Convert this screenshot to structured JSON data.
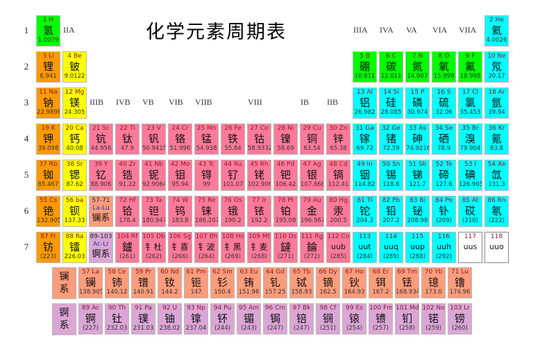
{
  "title": "化学元素周期表",
  "group_labels": {
    "top": [
      "IIA",
      "IIIA",
      "IVA",
      "VA",
      "VIA",
      "VIIA"
    ],
    "middle": [
      "IIIB",
      "IVB",
      "VB",
      "VIB",
      "VIIB",
      "VIII",
      "IB",
      "IIB"
    ]
  },
  "periods": [
    "1",
    "2",
    "3",
    "4",
    "5",
    "6",
    "7"
  ],
  "rows": [
    [
      {
        "number": "1",
        "symbol": "H",
        "name": "氢",
        "mass": "1.0079",
        "color": "#00ff00"
      },
      null,
      null,
      null,
      null,
      null,
      null,
      null,
      null,
      null,
      null,
      null,
      null,
      null,
      null,
      null,
      null,
      {
        "number": "2",
        "symbol": "He",
        "name": "氦",
        "mass": "4.0026",
        "color": "#00ffff"
      }
    ],
    [
      {
        "number": "3",
        "symbol": "Li",
        "name": "锂",
        "mass": "6.941",
        "color": "#ff9900"
      },
      {
        "number": "4",
        "symbol": "Be",
        "name": "铍",
        "mass": "9.0122",
        "color": "#ffff00"
      },
      null,
      null,
      null,
      null,
      null,
      null,
      null,
      null,
      null,
      null,
      {
        "number": "5",
        "symbol": "B",
        "name": "硼",
        "mass": "10.811",
        "color": "#00ff00"
      },
      {
        "number": "6",
        "symbol": "C",
        "name": "碳",
        "mass": "12.011",
        "color": "#00ff00"
      },
      {
        "number": "7",
        "symbol": "N",
        "name": "氮",
        "mass": "14.007",
        "color": "#00ff00"
      },
      {
        "number": "8",
        "symbol": "O",
        "name": "氧",
        "mass": "15.999",
        "color": "#00ff00"
      },
      {
        "number": "9",
        "symbol": "F",
        "name": "氟",
        "mass": "18.998",
        "color": "#00ff00"
      },
      {
        "number": "10",
        "symbol": "Ne",
        "name": "氖",
        "mass": "20.17",
        "color": "#00ffff"
      }
    ],
    [
      {
        "number": "11",
        "symbol": "Na",
        "name": "钠",
        "mass": "22.9898",
        "color": "#ff9900"
      },
      {
        "number": "12",
        "symbol": "Mg",
        "name": "镁",
        "mass": "24.305",
        "color": "#ffff00"
      },
      null,
      null,
      null,
      null,
      null,
      null,
      null,
      null,
      null,
      null,
      {
        "number": "13",
        "symbol": "Al",
        "name": "铝",
        "mass": "26.982",
        "color": "#00ffff"
      },
      {
        "number": "14",
        "symbol": "Si",
        "name": "硅",
        "mass": "28.085",
        "color": "#00ffff"
      },
      {
        "number": "15",
        "symbol": "P",
        "name": "磷",
        "mass": "30.974",
        "color": "#00ffff"
      },
      {
        "number": "16",
        "symbol": "S",
        "name": "硫",
        "mass": "32.06",
        "color": "#00ffff"
      },
      {
        "number": "17",
        "symbol": "Cl",
        "name": "氯",
        "mass": "35.453",
        "color": "#00ffff"
      },
      {
        "number": "18",
        "symbol": "Ar",
        "name": "氩",
        "mass": "39.94",
        "color": "#00ffff"
      }
    ],
    [
      {
        "number": "19",
        "symbol": "K",
        "name": "钾",
        "mass": "39.098",
        "color": "#ff9900"
      },
      {
        "number": "20",
        "symbol": "Ca",
        "name": "钙",
        "mass": "40.08",
        "color": "#ffff00"
      },
      {
        "number": "21",
        "symbol": "Sc",
        "name": "钪",
        "mass": "44.956",
        "color": "#ff7a99"
      },
      {
        "number": "22",
        "symbol": "Ti",
        "name": "钛",
        "mass": "47.9",
        "color": "#ff7a99"
      },
      {
        "number": "23",
        "symbol": "V",
        "name": "钒",
        "mass": "50.9415",
        "color": "#ff7a99"
      },
      {
        "number": "24",
        "symbol": "Cr",
        "name": "铬",
        "mass": "51.996",
        "color": "#ff7a99"
      },
      {
        "number": "25",
        "symbol": "Mn",
        "name": "锰",
        "mass": "54.938",
        "color": "#ff7a99"
      },
      {
        "number": "26",
        "symbol": "Fe",
        "name": "铁",
        "mass": "55.84",
        "color": "#ff7a99"
      },
      {
        "number": "27",
        "symbol": "Co",
        "name": "钴",
        "mass": "58.9332",
        "color": "#ff7a99"
      },
      {
        "number": "28",
        "symbol": "Ni",
        "name": "镍",
        "mass": "58.69",
        "color": "#ff7a99"
      },
      {
        "number": "29",
        "symbol": "Cu",
        "name": "铜",
        "mass": "63.54",
        "color": "#ff7a99"
      },
      {
        "number": "30",
        "symbol": "Zn",
        "name": "锌",
        "mass": "65.38",
        "color": "#ff7a99"
      },
      {
        "number": "31",
        "symbol": "Ga",
        "name": "镓",
        "mass": "69.72",
        "color": "#00ffff"
      },
      {
        "number": "32",
        "symbol": "Ge",
        "name": "锗",
        "mass": "72.59",
        "color": "#00ffff"
      },
      {
        "number": "33",
        "symbol": "As",
        "name": "砷",
        "mass": "74.9216",
        "color": "#00ffff"
      },
      {
        "number": "34",
        "symbol": "Se",
        "name": "硒",
        "mass": "78.9",
        "color": "#00ffff"
      },
      {
        "number": "35",
        "symbol": "Br",
        "name": "溴",
        "mass": "79.904",
        "color": "#00ffff"
      },
      {
        "number": "36",
        "symbol": "Kr",
        "name": "氪",
        "mass": "83.8",
        "color": "#00ffff"
      }
    ],
    [
      {
        "number": "37",
        "symbol": "Rb",
        "name": "铷",
        "mass": "85.467",
        "color": "#ff9900"
      },
      {
        "number": "38",
        "symbol": "Sr",
        "name": "锶",
        "mass": "87.62",
        "color": "#ffff00"
      },
      {
        "number": "39",
        "symbol": "Y",
        "name": "钇",
        "mass": "88.906",
        "color": "#ff7a99"
      },
      {
        "number": "40",
        "symbol": "Zr",
        "name": "锆",
        "mass": "91.22",
        "color": "#ff7a99"
      },
      {
        "number": "41",
        "symbol": "Nb",
        "name": "铌",
        "mass": "92.9064",
        "color": "#ff7a99"
      },
      {
        "number": "42",
        "symbol": "Mo",
        "name": "钼",
        "mass": "95.94",
        "color": "#ff7a99"
      },
      {
        "number": "43",
        "symbol": "Tc",
        "name": "锝",
        "mass": "99",
        "color": "#ff7a99"
      },
      {
        "number": "44",
        "symbol": "Ru",
        "name": "钌",
        "mass": "101.07",
        "color": "#ff7a99"
      },
      {
        "number": "45",
        "symbol": "Rh",
        "name": "铑",
        "mass": "102.906",
        "color": "#ff7a99"
      },
      {
        "number": "46",
        "symbol": "Pd",
        "name": "钯",
        "mass": "106.42",
        "color": "#ff7a99"
      },
      {
        "number": "47",
        "symbol": "Ag",
        "name": "银",
        "mass": "107.868",
        "color": "#ff7a99"
      },
      {
        "number": "48",
        "symbol": "Cd",
        "name": "镉",
        "mass": "112.41",
        "color": "#ff7a99"
      },
      {
        "number": "49",
        "symbol": "In",
        "name": "铟",
        "mass": "114.82",
        "color": "#00ffff"
      },
      {
        "number": "50",
        "symbol": "Sn",
        "name": "锡",
        "mass": "118.6",
        "color": "#00ffff"
      },
      {
        "number": "51",
        "symbol": "Sb",
        "name": "锑",
        "mass": "121.7",
        "color": "#00ffff"
      },
      {
        "number": "52",
        "symbol": "Te",
        "name": "碲",
        "mass": "127.6",
        "color": "#00ffff"
      },
      {
        "number": "53",
        "symbol": "I",
        "name": "碘",
        "mass": "126.905",
        "color": "#00ffff"
      },
      {
        "number": "54",
        "symbol": "Xe",
        "name": "氙",
        "mass": "131.3",
        "color": "#00ffff"
      }
    ],
    [
      {
        "number": "55",
        "symbol": "Cs",
        "name": "铯",
        "mass": "132.905",
        "color": "#ff9900"
      },
      {
        "number": "56",
        "symbol": "ba",
        "name": "钡",
        "mass": "137.33",
        "color": "#ffff00"
      },
      {
        "number": "57-71",
        "symbol": "La-Lu",
        "name": "镧系",
        "color": "#ff9c7c"
      },
      {
        "number": "72",
        "symbol": "Hf",
        "name": "铪",
        "mass": "178.4",
        "color": "#ff7a99"
      },
      {
        "number": "73",
        "symbol": "Ta",
        "name": "钽",
        "mass": "180.947",
        "color": "#ff7a99"
      },
      {
        "number": "74",
        "symbol": "W",
        "name": "钨",
        "mass": "183.8",
        "color": "#ff7a99"
      },
      {
        "number": "75",
        "symbol": "Re",
        "name": "铼",
        "mass": "186.207",
        "color": "#ff7a99"
      },
      {
        "number": "76",
        "symbol": "Os",
        "name": "锇",
        "mass": "190.2",
        "color": "#ff7a99"
      },
      {
        "number": "77",
        "symbol": "Ir",
        "name": "铱",
        "mass": "192.2",
        "color": "#ff7a99"
      },
      {
        "number": "78",
        "symbol": "Pt",
        "name": "铂",
        "mass": "195.08",
        "color": "#ff7a99"
      },
      {
        "number": "79",
        "symbol": "Au",
        "name": "金",
        "mass": "196.967",
        "color": "#ff7a99"
      },
      {
        "number": "80",
        "symbol": "Hg",
        "name": "汞",
        "mass": "200.5",
        "color": "#ff7a99"
      },
      {
        "number": "81",
        "symbol": "Tl",
        "name": "铊",
        "mass": "204.3",
        "color": "#00ffff"
      },
      {
        "number": "82",
        "symbol": "Pb",
        "name": "铅",
        "mass": "207.2",
        "color": "#00ffff"
      },
      {
        "number": "83",
        "symbol": "Bi",
        "name": "铋",
        "mass": "208.98",
        "color": "#00ffff"
      },
      {
        "number": "84",
        "symbol": "Po",
        "name": "钋",
        "mass": "(209)",
        "color": "#00ffff"
      },
      {
        "number": "85",
        "symbol": "At",
        "name": "砹",
        "mass": "(210)",
        "color": "#00ffff"
      },
      {
        "number": "86",
        "symbol": "Rn",
        "name": "氡",
        "mass": "(222)",
        "color": "#00ffff"
      }
    ],
    [
      {
        "number": "87",
        "symbol": "Fr",
        "name": "钫",
        "mass": "(223)",
        "color": "#ff9900"
      },
      {
        "number": "88",
        "symbol": "Ra",
        "name": "镭",
        "mass": "226.03",
        "color": "#ffff00"
      },
      {
        "number": "89-103",
        "symbol": "Ac-Lr",
        "name": "锕系",
        "color": "#dba6d6"
      },
      {
        "number": "104",
        "symbol": "Rf",
        "name": "鑪",
        "mass": "(261)",
        "color": "#ff7a99"
      },
      {
        "number": "105",
        "symbol": "Db",
        "name": "钅杜",
        "mass": "(262)",
        "color": "#ff7a99"
      },
      {
        "number": "106",
        "symbol": "Sg",
        "name": "钅喜",
        "mass": "(266)",
        "color": "#ff7a99"
      },
      {
        "number": "107",
        "symbol": "Bh",
        "name": "钅波",
        "mass": "(264)",
        "color": "#ff7a99"
      },
      {
        "number": "108",
        "symbol": "Hs",
        "name": "钅黑",
        "mass": "(269)",
        "color": "#ff7a99"
      },
      {
        "number": "109",
        "symbol": "Mt",
        "name": "钅麦",
        "mass": "(268)",
        "color": "#ff7a99"
      },
      {
        "number": "110",
        "symbol": "Ds",
        "name": "鐽",
        "mass": "(271)",
        "color": "#ff7a99"
      },
      {
        "number": "111",
        "symbol": "Rg",
        "name": "錀",
        "mass": "(272)",
        "color": "#ff7a99"
      },
      {
        "number": "112",
        "symbol": "Cn",
        "name": "uub",
        "mass": "(285)",
        "color": "#ff7a99"
      },
      {
        "number": "113",
        "name": "uut",
        "mass": "(284)",
        "color": "#00ffff"
      },
      {
        "number": "114",
        "name": "uuq",
        "mass": "(289)",
        "color": "#00ffff"
      },
      {
        "number": "115",
        "name": "uup",
        "mass": "(288)",
        "color": "#00ffff"
      },
      {
        "number": "116",
        "name": "uuh",
        "mass": "(292)",
        "color": "#00ffff"
      },
      {
        "number": "117",
        "name": "uus",
        "color": "#ffffff"
      },
      {
        "number": "118",
        "name": "uuo",
        "color": "#ffffff"
      }
    ]
  ],
  "series": [
    {
      "label": "镧系",
      "color": "#ff9c7c",
      "elements": [
        {
          "number": "57",
          "symbol": "La",
          "name": "镧",
          "mass": "138.905"
        },
        {
          "number": "58",
          "symbol": "Ce",
          "name": "铈",
          "mass": "140.12"
        },
        {
          "number": "59",
          "symbol": "Pr",
          "name": "镨",
          "mass": "140.91"
        },
        {
          "number": "60",
          "symbol": "Nd",
          "name": "钕",
          "mass": "144.2"
        },
        {
          "number": "61",
          "symbol": "Pm",
          "name": "钷",
          "mass": "147"
        },
        {
          "number": "62",
          "symbol": "Sm",
          "name": "钐",
          "mass": "150.4"
        },
        {
          "number": "63",
          "symbol": "Eu",
          "name": "铕",
          "mass": "151.96"
        },
        {
          "number": "64",
          "symbol": "Gd",
          "name": "钆",
          "mass": "157.25"
        },
        {
          "number": "65",
          "symbol": "Tb",
          "name": "铽",
          "mass": "158.93"
        },
        {
          "number": "66",
          "symbol": "Dy",
          "name": "镝",
          "mass": "162.5"
        },
        {
          "number": "67",
          "symbol": "Ho",
          "name": "钬",
          "mass": "164.93"
        },
        {
          "number": "68",
          "symbol": "Er",
          "name": "铒",
          "mass": "167.2"
        },
        {
          "number": "69",
          "symbol": "Tm",
          "name": "铥",
          "mass": "168.934"
        },
        {
          "number": "70",
          "symbol": "Yb",
          "name": "镱",
          "mass": "173.0"
        },
        {
          "number": "71",
          "symbol": "Lu",
          "name": "镥",
          "mass": "174.96"
        }
      ]
    },
    {
      "label": "锕系",
      "color": "#dba6d6",
      "elements": [
        {
          "number": "89",
          "symbol": "Ac",
          "name": "锕",
          "mass": "(227)"
        },
        {
          "number": "90",
          "symbol": "Th",
          "name": "钍",
          "mass": "232.03"
        },
        {
          "number": "91",
          "symbol": "Pa",
          "name": "镤",
          "mass": "231.03"
        },
        {
          "number": "92",
          "symbol": "U",
          "name": "铀",
          "mass": "238.02"
        },
        {
          "number": "93",
          "symbol": "Np",
          "name": "镎",
          "mass": "237.04"
        },
        {
          "number": "94",
          "symbol": "Pu",
          "name": "钚",
          "mass": "(244)"
        },
        {
          "number": "95",
          "symbol": "Am",
          "name": "镅",
          "mass": "(243)"
        },
        {
          "number": "96",
          "symbol": "Cm",
          "name": "锔",
          "mass": "(247)"
        },
        {
          "number": "97",
          "symbol": "Bk",
          "name": "锫",
          "mass": "(247)"
        },
        {
          "number": "98",
          "symbol": "Cf",
          "name": "锎",
          "mass": "(251)"
        },
        {
          "number": "99",
          "symbol": "Es",
          "name": "锿",
          "mass": "(254)"
        },
        {
          "number": "100",
          "symbol": "Fm",
          "name": "镄",
          "mass": "(257)"
        },
        {
          "number": "101",
          "symbol": "Md",
          "name": "钔",
          "mass": "(258)"
        },
        {
          "number": "102",
          "symbol": "No",
          "name": "锘",
          "mass": "(259)"
        },
        {
          "number": "103",
          "symbol": "Lr",
          "name": "铹",
          "mass": "(260)"
        }
      ]
    }
  ]
}
